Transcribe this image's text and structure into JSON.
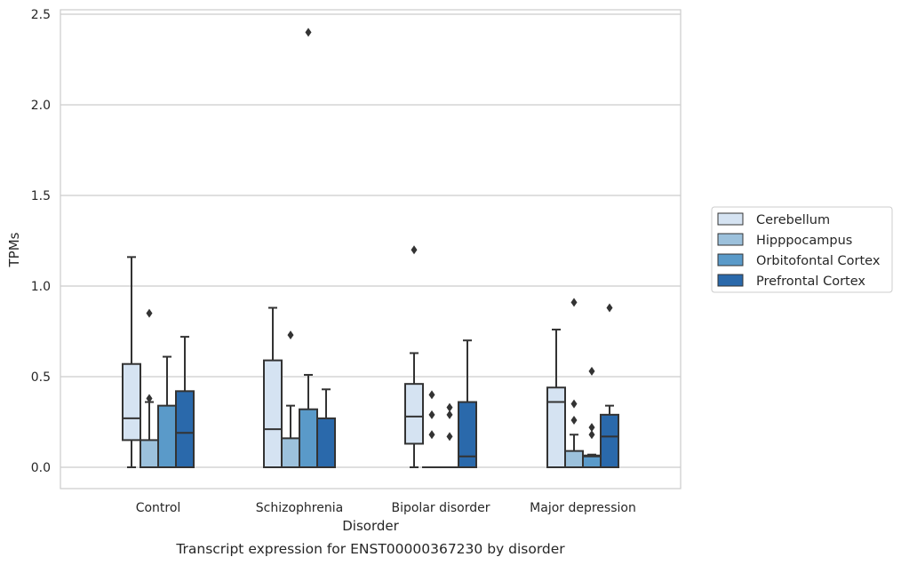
{
  "chart_data": {
    "type": "boxplot",
    "caption": "Transcript expression for ENST00000367230 by disorder",
    "xlabel": "Disorder",
    "ylabel": "TPMs",
    "ylim": [
      -0.12,
      2.53
    ],
    "yticks": [
      "0.0",
      "0.5",
      "1.0",
      "1.5",
      "2.0",
      "2.5"
    ],
    "grid": true,
    "legend_position": "right",
    "categories": [
      "Control",
      "Schizophrenia",
      "Bipolar disorder",
      "Major depression"
    ],
    "series": [
      {
        "name": "Cerebellum",
        "color": "#d5e3f2",
        "boxes": [
          {
            "whislo": 0.0,
            "q1": 0.15,
            "med": 0.27,
            "q3": 0.57,
            "whishi": 1.16,
            "fliers": []
          },
          {
            "whislo": 0.0,
            "q1": 0.0,
            "med": 0.21,
            "q3": 0.59,
            "whishi": 0.88,
            "fliers": []
          },
          {
            "whislo": 0.0,
            "q1": 0.13,
            "med": 0.28,
            "q3": 0.46,
            "whishi": 0.63,
            "fliers": [
              1.2
            ]
          },
          {
            "whislo": 0.0,
            "q1": 0.0,
            "med": 0.36,
            "q3": 0.44,
            "whishi": 0.76,
            "fliers": []
          }
        ]
      },
      {
        "name": "Hipppocampus",
        "color": "#9cc1dc",
        "boxes": [
          {
            "whislo": 0.0,
            "q1": 0.0,
            "med": 0.0,
            "q3": 0.15,
            "whishi": 0.36,
            "fliers": [
              0.38,
              0.85
            ]
          },
          {
            "whislo": 0.0,
            "q1": 0.0,
            "med": 0.0,
            "q3": 0.16,
            "whishi": 0.34,
            "fliers": [
              0.73
            ]
          },
          {
            "whislo": 0.0,
            "q1": 0.0,
            "med": 0.0,
            "q3": 0.0,
            "whishi": 0.0,
            "fliers": [
              0.18,
              0.29,
              0.4
            ]
          },
          {
            "whislo": 0.0,
            "q1": 0.0,
            "med": 0.0,
            "q3": 0.09,
            "whishi": 0.18,
            "fliers": [
              0.26,
              0.35,
              0.91
            ]
          }
        ]
      },
      {
        "name": "Orbitofontal Cortex",
        "color": "#5a9ac9",
        "boxes": [
          {
            "whislo": 0.0,
            "q1": 0.0,
            "med": 0.0,
            "q3": 0.34,
            "whishi": 0.61,
            "fliers": []
          },
          {
            "whislo": 0.0,
            "q1": 0.0,
            "med": 0.0,
            "q3": 0.32,
            "whishi": 0.51,
            "fliers": [
              2.4
            ]
          },
          {
            "whislo": 0.0,
            "q1": 0.0,
            "med": 0.0,
            "q3": 0.0,
            "whishi": 0.0,
            "fliers": [
              0.17,
              0.29,
              0.33
            ]
          },
          {
            "whislo": 0.0,
            "q1": 0.0,
            "med": 0.06,
            "q3": 0.065,
            "whishi": 0.07,
            "fliers": [
              0.18,
              0.22,
              0.53
            ]
          }
        ]
      },
      {
        "name": "Prefrontal Cortex",
        "color": "#2a69ab",
        "boxes": [
          {
            "whislo": 0.0,
            "q1": 0.0,
            "med": 0.19,
            "q3": 0.42,
            "whishi": 0.72,
            "fliers": []
          },
          {
            "whislo": 0.0,
            "q1": 0.0,
            "med": 0.0,
            "q3": 0.27,
            "whishi": 0.43,
            "fliers": []
          },
          {
            "whislo": 0.0,
            "q1": 0.0,
            "med": 0.06,
            "q3": 0.36,
            "whishi": 0.7,
            "fliers": []
          },
          {
            "whislo": 0.0,
            "q1": 0.0,
            "med": 0.17,
            "q3": 0.29,
            "whishi": 0.34,
            "fliers": [
              0.88
            ]
          }
        ]
      }
    ],
    "style": {
      "line_color": "#333333",
      "grid_color": "#cccccc",
      "spine_color": "#cccccc"
    }
  }
}
